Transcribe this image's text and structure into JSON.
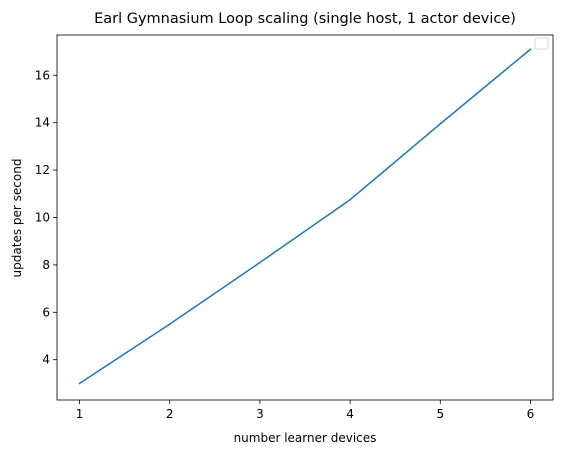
{
  "chart_data": {
    "type": "line",
    "title": "Earl Gymnasium Loop scaling (single host, 1 actor device)",
    "xlabel": "number learner devices",
    "ylabel": "updates per second",
    "x": [
      1,
      2,
      3,
      4,
      5,
      6
    ],
    "x_ticks": [
      "1",
      "2",
      "3",
      "4",
      "5",
      "6"
    ],
    "y_ticks": [
      "4",
      "6",
      "8",
      "10",
      "12",
      "14",
      "16"
    ],
    "xlim": [
      0.75,
      6.25
    ],
    "ylim": [
      2.3,
      17.7
    ],
    "series": [
      {
        "values": [
          3.0,
          5.5,
          8.1,
          10.75,
          13.95,
          17.1
        ],
        "color": "#1f77b4"
      }
    ],
    "legend": {
      "placement": "upper right",
      "entries": []
    },
    "grid": false
  }
}
